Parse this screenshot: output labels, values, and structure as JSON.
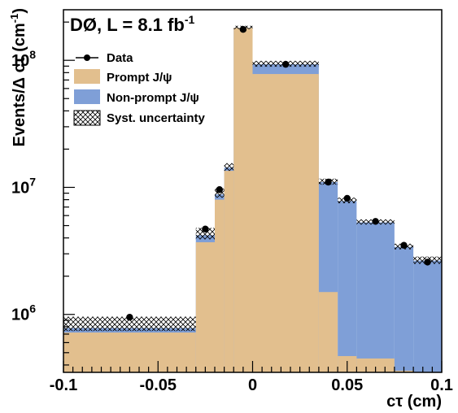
{
  "chart_data": {
    "type": "bar",
    "experiment_label": "DØ, L = 8.1 fb",
    "experiment_label_sup": "-1",
    "xlabel": "cτ (cm)",
    "ylabel": "Events/Δ cτ (cm",
    "ylabel_sup": "-1",
    "ylabel_close": ")",
    "x_scale": "linear",
    "y_scale": "log",
    "xlim": [
      -0.1,
      0.1
    ],
    "ylim": [
      350000,
      250000000
    ],
    "x_ticks": [
      {
        "value": -0.1,
        "label": "-0.1"
      },
      {
        "value": -0.05,
        "label": "-0.05"
      },
      {
        "value": 0,
        "label": "0"
      },
      {
        "value": 0.05,
        "label": "0.05"
      },
      {
        "value": 0.1,
        "label": "0.1"
      }
    ],
    "y_ticks": [
      {
        "value": 1000000,
        "base": "10",
        "exp": "6"
      },
      {
        "value": 10000000,
        "base": "10",
        "exp": "7"
      },
      {
        "value": 100000000,
        "base": "10",
        "exp": "8"
      }
    ],
    "bin_edges": [
      -0.1,
      -0.03,
      -0.02,
      -0.015,
      -0.01,
      0,
      0.035,
      0.045,
      0.055,
      0.075,
      0.085,
      0.1
    ],
    "series": [
      {
        "name": "Prompt J/ψ",
        "color": "#e2bf8e",
        "values": [
          720000,
          3700000,
          8000000,
          13500000,
          180000000,
          78000000,
          1500000,
          470000,
          450000,
          360000,
          300000
        ]
      },
      {
        "name": "Non-prompt J/ψ",
        "color": "#7f9fd7",
        "values": [
          780000,
          4200000,
          8800000,
          14300000,
          180000000,
          93000000,
          11000000,
          7800000,
          5300000,
          3400000,
          2650000
        ]
      },
      {
        "name": "Syst. uncertainty",
        "values_low": [
          740000,
          3900000,
          8300000,
          13500000,
          176000000,
          89000000,
          10500000,
          7500000,
          5100000,
          3250000,
          2500000
        ],
        "values_high": [
          960000,
          4800000,
          9800000,
          15500000,
          187000000,
          99000000,
          11700000,
          8300000,
          5600000,
          3600000,
          2850000
        ]
      },
      {
        "name": "Data",
        "color": "#000000",
        "x": [
          -0.065,
          -0.025,
          -0.0175,
          -0.005,
          0.0175,
          0.04,
          0.05,
          0.065,
          0.08,
          0.0925
        ],
        "y": [
          950000,
          4700000,
          9600000,
          175000000,
          93000000,
          11000000,
          8200000,
          5400000,
          3500000,
          2580000
        ]
      }
    ],
    "legend_position": "top-left"
  }
}
